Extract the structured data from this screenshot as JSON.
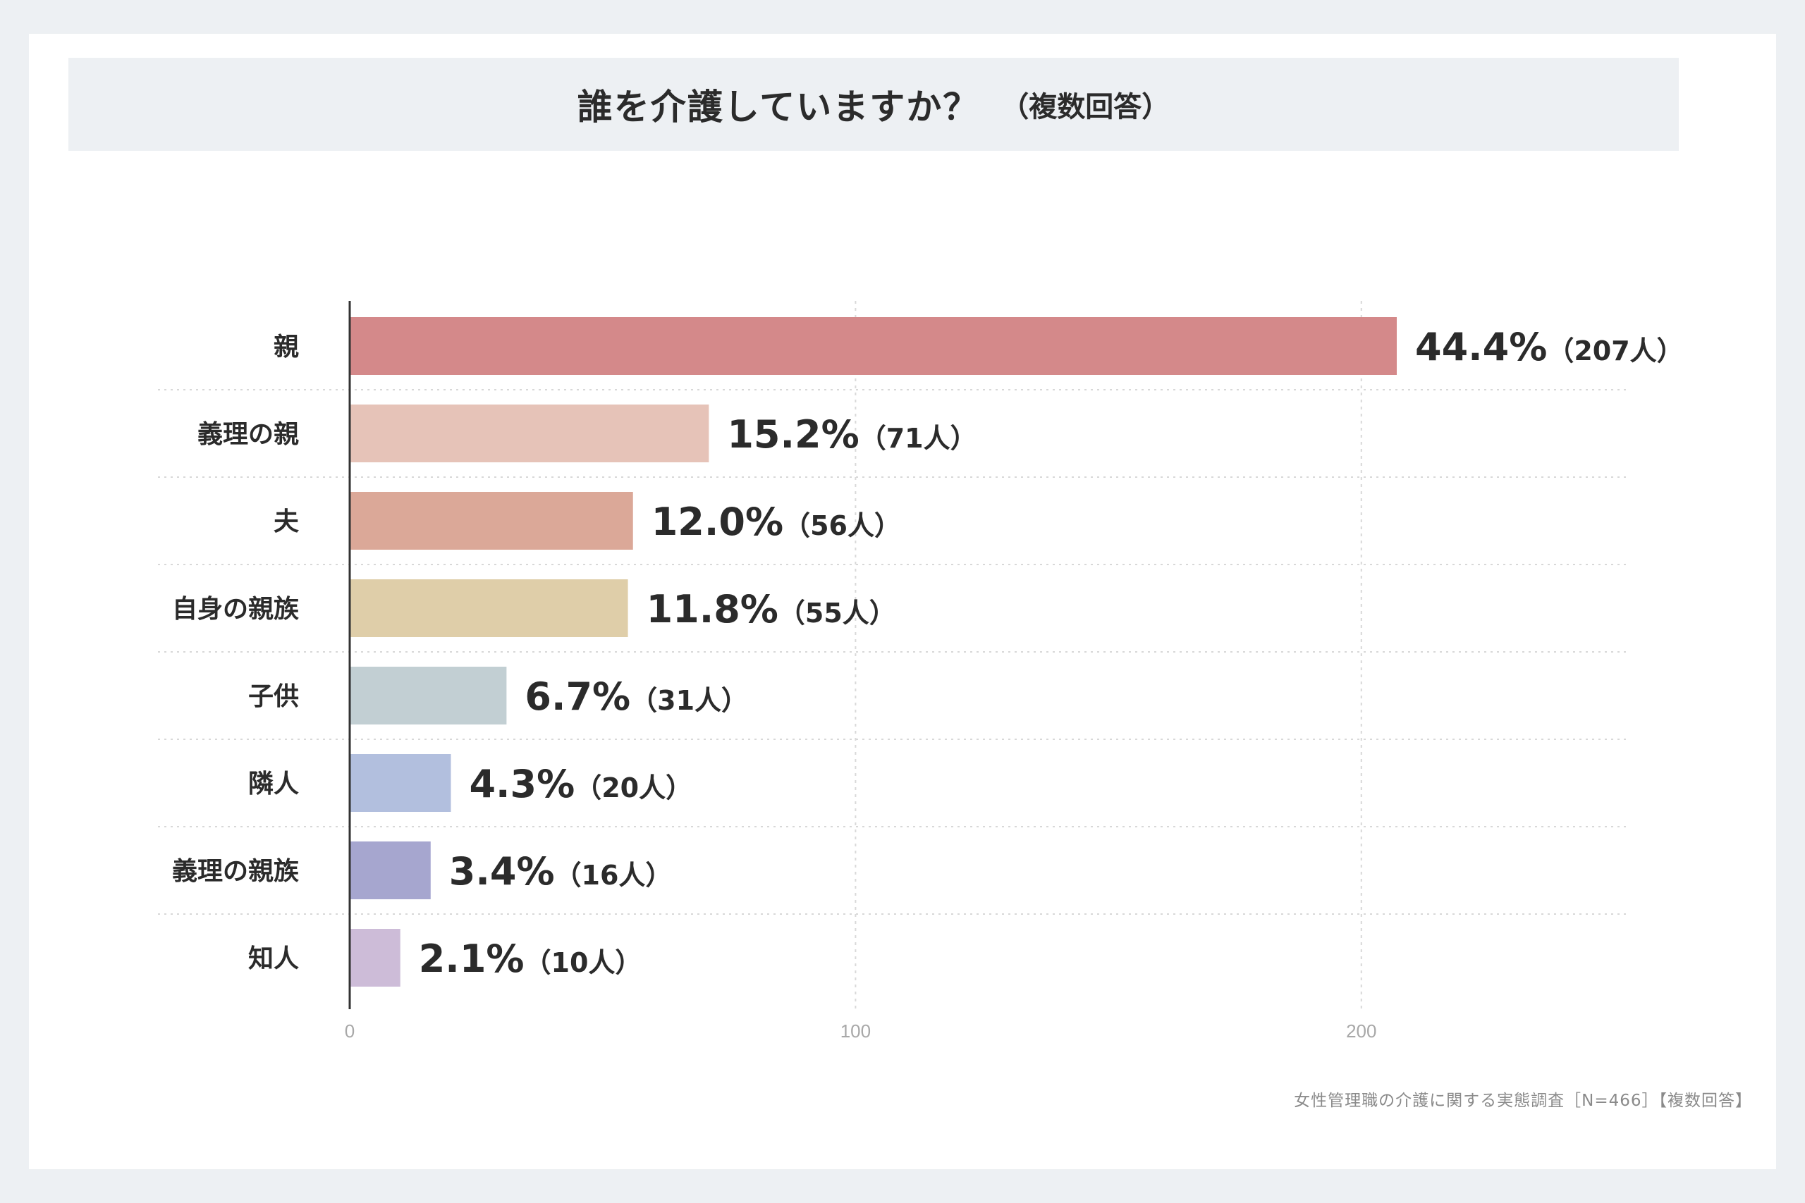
{
  "title": "誰を介護していますか？",
  "subtitle": "（複数回答）",
  "footnote": "女性管理職の介護に関する実態調査［N=466］【複数回答】",
  "chart_data": {
    "type": "bar",
    "orientation": "horizontal",
    "categories": [
      "親",
      "義理の親",
      "夫",
      "自身の親族",
      "子供",
      "隣人",
      "義理の親族",
      "知人"
    ],
    "values": [
      207,
      71,
      56,
      55,
      31,
      20,
      16,
      10
    ],
    "percentages": [
      "44.4%",
      "15.2%",
      "12.0%",
      "11.8%",
      "6.7%",
      "4.3%",
      "3.4%",
      "2.1%"
    ],
    "count_labels": [
      "（207人）",
      "（71人）",
      "（56人）",
      "（55人）",
      "（31人）",
      "（20人）",
      "（16人）",
      "（10人）"
    ],
    "colors": [
      "#d4898a",
      "#e6c3b8",
      "#dba898",
      "#dfcea9",
      "#c2cfd3",
      "#b2bfde",
      "#a6a6cf",
      "#cdbcd8"
    ],
    "xticks": [
      0,
      100,
      200
    ],
    "xlim": [
      0,
      253
    ],
    "grid": true
  }
}
